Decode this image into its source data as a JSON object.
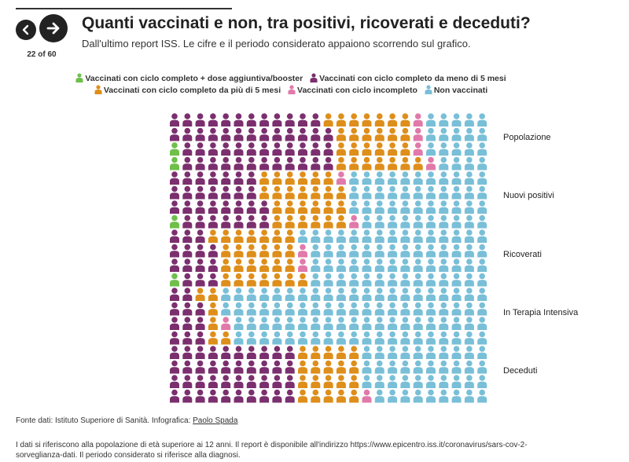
{
  "header": {
    "counter": "22 of 60",
    "title": "Quanti vaccinati e non, tra positivi, ricoverati e deceduti?",
    "subtitle": "Dall'ultimo report ISS. Le cifre e il periodo considerato appaiono scorrendo sul grafico."
  },
  "legend": [
    {
      "label": "Vaccinati con ciclo completo + dose aggiuntiva/booster",
      "color": "#6fbf4a"
    },
    {
      "label": "Vaccinati con ciclo completo da meno di 5 mesi",
      "color": "#7b2f6e"
    },
    {
      "label": "Vaccinati con ciclo completo da più di 5 mesi",
      "color": "#de8e1a"
    },
    {
      "label": "Vaccinati con ciclo incompleto",
      "color": "#e07aaa"
    },
    {
      "label": "Non vaccinati",
      "color": "#79bfd8"
    }
  ],
  "chart_data": {
    "type": "waffle",
    "title": "Quanti vaccinati e non, tra positivi, ricoverati e deceduti?",
    "unit": "icons out of 100",
    "series_names": [
      "Vaccinati con ciclo completo + dose aggiuntiva/booster",
      "Vaccinati con ciclo completo da meno di 5 mesi",
      "Vaccinati con ciclo completo da più di 5 mesi",
      "Vaccinati con ciclo incompleto",
      "Non vaccinati"
    ],
    "categories": [
      "Popolazione",
      "Nuovi positivi",
      "Ricoverati",
      "In Terapia Intensiva",
      "Deceduti"
    ],
    "values": [
      [
        2,
        49,
        26,
        4,
        19
      ],
      [
        1,
        29,
        25,
        2,
        43
      ],
      [
        1,
        14,
        26,
        2,
        57
      ],
      [
        0,
        11,
        6,
        1,
        82
      ],
      [
        0,
        40,
        20,
        1,
        39
      ]
    ]
  },
  "footer": {
    "source_prefix": "Fonte dati: Istituto Superiore di Sanità. Infografica: ",
    "author": "Paolo Spada",
    "note": "I dati si riferiscono alla popolazione di età superiore ai 12 anni. Il report è disponibile all'indirizzo https://www.epicentro.iss.it/coronavirus/sars-cov-2-sorveglianza-dati. Il periodo considerato si riferisce alla diagnosi."
  }
}
